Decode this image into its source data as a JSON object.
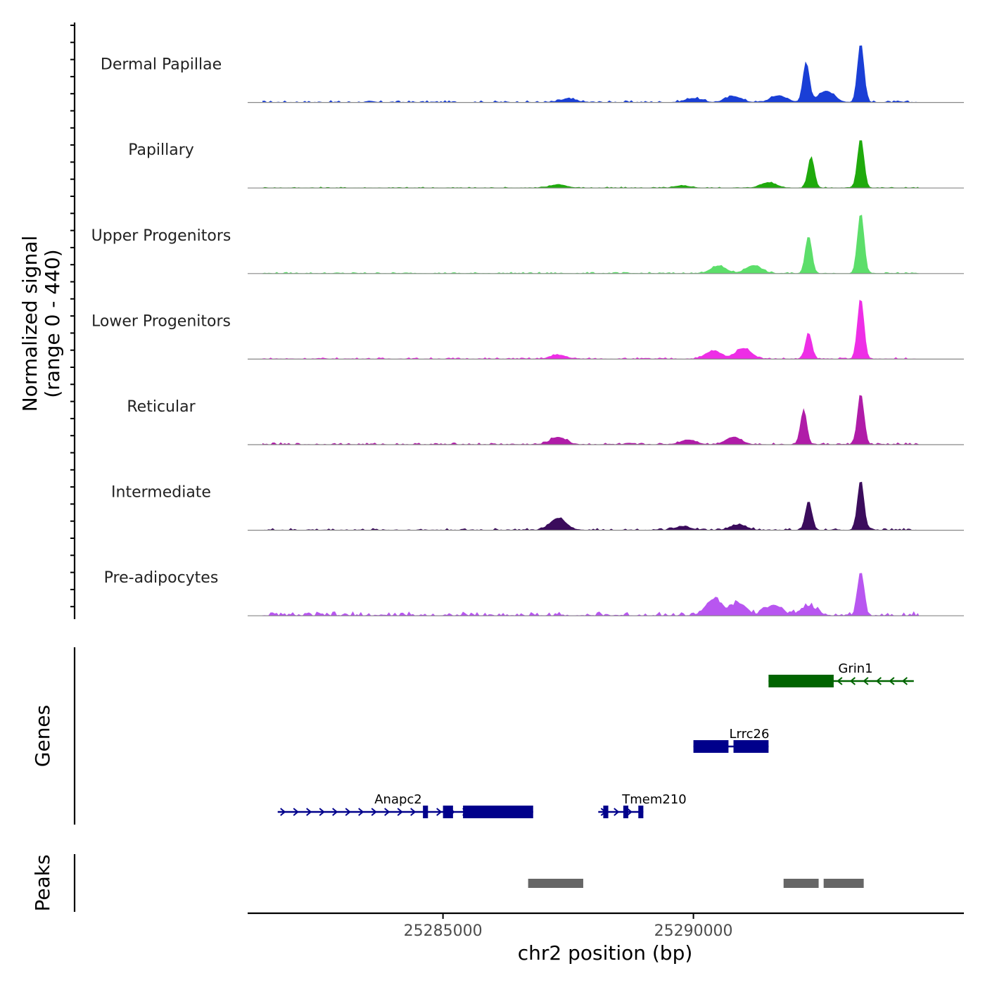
{
  "chart_data": {
    "type": "area",
    "title": "",
    "xlabel": "chr2 position (bp)",
    "ylabel": [
      "Normalized signal",
      "(range 0 - 440)"
    ],
    "xlim": [
      25281100,
      25295400
    ],
    "ylim": [
      0,
      440
    ],
    "x_ticks": [
      25285000,
      25290000
    ],
    "x_tick_labels": [
      "25285000",
      "25290000"
    ],
    "signal_peaks": [
      {
        "position": 25287300,
        "width": 250
      },
      {
        "position": 25291400,
        "width": 600
      },
      {
        "position": 25292200,
        "width": 300
      },
      {
        "position": 25292650,
        "width": 120
      },
      {
        "position": 25293300,
        "width": 90
      },
      {
        "position": 25290400,
        "width": 500
      }
    ],
    "series": [
      {
        "name": "Dermal Papillae",
        "color": "#1a3fd6",
        "max": 440,
        "features": [
          {
            "x": 25287500,
            "h": 25
          },
          {
            "x": 25290000,
            "h": 30
          },
          {
            "x": 25290800,
            "h": 45
          },
          {
            "x": 25291700,
            "h": 50
          },
          {
            "x": 25292250,
            "h": 290
          },
          {
            "x": 25292650,
            "h": 85
          },
          {
            "x": 25293340,
            "h": 440
          }
        ],
        "noise": 14
      },
      {
        "name": "Papillary",
        "color": "#1faa0c",
        "max": 370,
        "features": [
          {
            "x": 25287300,
            "h": 25
          },
          {
            "x": 25289800,
            "h": 15
          },
          {
            "x": 25291500,
            "h": 40
          },
          {
            "x": 25292350,
            "h": 230
          },
          {
            "x": 25293340,
            "h": 370
          }
        ],
        "noise": 8
      },
      {
        "name": "Upper Progenitors",
        "color": "#5cde6a",
        "max": 450,
        "features": [
          {
            "x": 25290500,
            "h": 55
          },
          {
            "x": 25291200,
            "h": 60
          },
          {
            "x": 25292300,
            "h": 280
          },
          {
            "x": 25293340,
            "h": 450
          }
        ],
        "noise": 10
      },
      {
        "name": "Lower Progenitors",
        "color": "#ee2ee6",
        "max": 450,
        "features": [
          {
            "x": 25287300,
            "h": 30
          },
          {
            "x": 25290400,
            "h": 60
          },
          {
            "x": 25291000,
            "h": 80
          },
          {
            "x": 25292300,
            "h": 190
          },
          {
            "x": 25293340,
            "h": 450
          }
        ],
        "noise": 12
      },
      {
        "name": "Reticular",
        "color": "#b01ca8",
        "max": 380,
        "features": [
          {
            "x": 25287300,
            "h": 55
          },
          {
            "x": 25289900,
            "h": 35
          },
          {
            "x": 25290800,
            "h": 55
          },
          {
            "x": 25292200,
            "h": 250
          },
          {
            "x": 25293340,
            "h": 380
          }
        ],
        "noise": 14
      },
      {
        "name": "Intermediate",
        "color": "#3b0c5c",
        "max": 370,
        "features": [
          {
            "x": 25287300,
            "h": 90
          },
          {
            "x": 25289800,
            "h": 25
          },
          {
            "x": 25290900,
            "h": 40
          },
          {
            "x": 25292300,
            "h": 210
          },
          {
            "x": 25293340,
            "h": 370
          }
        ],
        "noise": 14
      },
      {
        "name": "Pre-adipocytes",
        "color": "#b856f0",
        "max": 330,
        "features": [
          {
            "x": 25290400,
            "h": 120
          },
          {
            "x": 25290900,
            "h": 90
          },
          {
            "x": 25291600,
            "h": 80
          },
          {
            "x": 25292300,
            "h": 70
          },
          {
            "x": 25293340,
            "h": 330
          }
        ],
        "noise": 30
      }
    ],
    "genes": [
      {
        "name": "Grin1",
        "strand": "-",
        "color": "#006400",
        "row": 1,
        "start": 25291500,
        "end": 25294400,
        "exons": [
          [
            25291500,
            25292800
          ]
        ]
      },
      {
        "name": "Lrrc26",
        "strand": "+",
        "color": "#00008b",
        "row": 2,
        "start": 25290000,
        "end": 25291500,
        "exons": [
          [
            25290000,
            25290700
          ],
          [
            25290800,
            25291500
          ]
        ]
      },
      {
        "name": "Anapc2",
        "strand": "+",
        "color": "#00008b",
        "row": 3,
        "start": 25281700,
        "end": 25286800,
        "exons": [
          [
            25284600,
            25284700
          ],
          [
            25285000,
            25285200
          ],
          [
            25285400,
            25286800
          ]
        ]
      },
      {
        "name": "Tmem210",
        "strand": "+",
        "color": "#00008b",
        "row": 3,
        "start": 25288100,
        "end": 25289000,
        "exons": [
          [
            25288200,
            25288300
          ],
          [
            25288600,
            25288700
          ],
          [
            25288900,
            25289000
          ]
        ]
      }
    ],
    "peaks": [
      {
        "start": 25286700,
        "end": 25287800
      },
      {
        "start": 25291800,
        "end": 25292500
      },
      {
        "start": 25292600,
        "end": 25293400
      }
    ],
    "panel_titles": {
      "genes": "Genes",
      "peaks": "Peaks"
    }
  }
}
